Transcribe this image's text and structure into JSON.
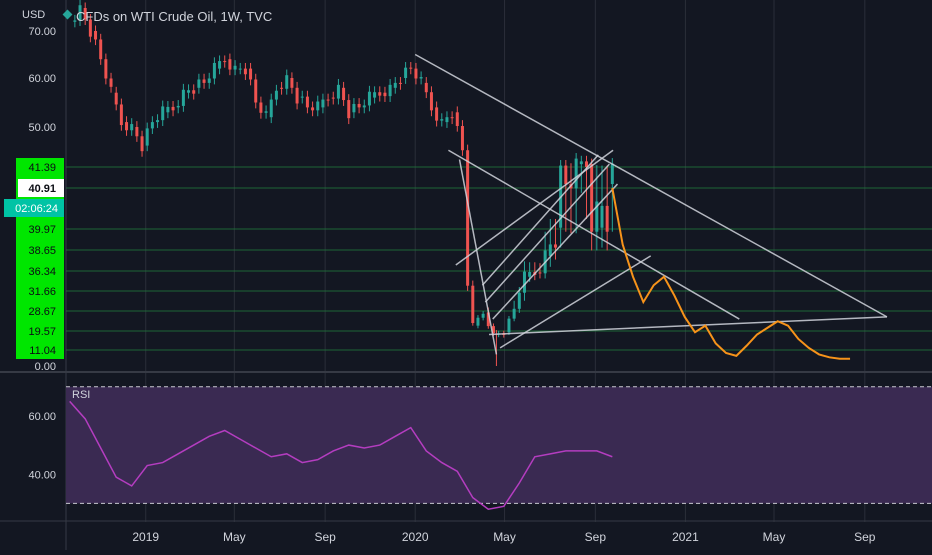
{
  "header": {
    "currency": "USD",
    "title": "CFDs on WTI Crude Oil, 1W, TVC",
    "countdown": "02:06:24"
  },
  "rsi_label": "RSI",
  "colors": {
    "background": "#131722",
    "up": "#26a69a",
    "down": "#ef5350",
    "trendline": "#d1d4dc",
    "projection": "#f7931a",
    "rsi_line": "#b43dc0",
    "rsi_band": "#3a2a52",
    "axis_text": "#d1d4dc",
    "price_tag": "#00e600",
    "last_price_tag": "#00c3a5"
  },
  "chart_data": [
    {
      "type": "candlestick",
      "ylim": [
        0,
        72
      ],
      "yticks": [
        0,
        50,
        60,
        70
      ],
      "ytick_labels": [
        "0.00",
        "50.00",
        "60.00",
        "70.00"
      ],
      "xlim": [
        "2018-09-15",
        "2021-12-01"
      ],
      "xticks": [
        "2019-01-01",
        "2019-05-01",
        "2019-09-01",
        "2020-01-01",
        "2020-05-01",
        "2020-09-01",
        "2021-01-01",
        "2021-05-01",
        "2021-09-01"
      ],
      "xtick_labels": [
        "2019",
        "May",
        "Sep",
        "2020",
        "May",
        "Sep",
        "2021",
        "May",
        "Sep"
      ],
      "price_levels": [
        {
          "label": "41.39",
          "value": 41.39
        },
        {
          "label": "40.91",
          "value": 40.91
        },
        {
          "label": "39.97",
          "value": 39.97
        },
        {
          "label": "38.65",
          "value": 38.65
        },
        {
          "label": "36.34",
          "value": 36.34
        },
        {
          "label": "31.66",
          "value": 31.66
        },
        {
          "label": "28.67",
          "value": 28.67
        },
        {
          "label": "19.57",
          "value": 19.57
        },
        {
          "label": "11.04",
          "value": 11.04
        }
      ],
      "last_price": 40.91,
      "price_path": [
        [
          "2018-09-20",
          72
        ],
        [
          "2018-10-04",
          75
        ],
        [
          "2018-10-18",
          70
        ],
        [
          "2018-11-01",
          64
        ],
        [
          "2018-11-15",
          57
        ],
        [
          "2018-11-29",
          51
        ],
        [
          "2018-12-13",
          50
        ],
        [
          "2018-12-27",
          46
        ],
        [
          "2019-01-10",
          51
        ],
        [
          "2019-01-24",
          53
        ],
        [
          "2019-02-07",
          54
        ],
        [
          "2019-02-21",
          57
        ],
        [
          "2019-03-07",
          58
        ],
        [
          "2019-03-21",
          59
        ],
        [
          "2019-04-04",
          62
        ],
        [
          "2019-04-18",
          64
        ],
        [
          "2019-05-02",
          62
        ],
        [
          "2019-05-16",
          62
        ],
        [
          "2019-05-30",
          55
        ],
        [
          "2019-06-13",
          52
        ],
        [
          "2019-06-27",
          58
        ],
        [
          "2019-07-11",
          60
        ],
        [
          "2019-07-25",
          56
        ],
        [
          "2019-08-08",
          54
        ],
        [
          "2019-08-22",
          54
        ],
        [
          "2019-09-05",
          56
        ],
        [
          "2019-09-19",
          58
        ],
        [
          "2019-10-03",
          53
        ],
        [
          "2019-10-17",
          54
        ],
        [
          "2019-10-31",
          56
        ],
        [
          "2019-11-14",
          57
        ],
        [
          "2019-11-28",
          58
        ],
        [
          "2019-12-12",
          60
        ],
        [
          "2019-12-26",
          62
        ],
        [
          "2020-01-09",
          59
        ],
        [
          "2020-01-23",
          54
        ],
        [
          "2020-02-06",
          51
        ],
        [
          "2020-02-20",
          53
        ],
        [
          "2020-03-05",
          45
        ],
        [
          "2020-03-19",
          22
        ],
        [
          "2020-04-02",
          28
        ],
        [
          "2020-04-16",
          18
        ],
        [
          "2020-04-30",
          19
        ],
        [
          "2020-05-14",
          29
        ],
        [
          "2020-05-28",
          35
        ],
        [
          "2020-06-11",
          36
        ],
        [
          "2020-06-25",
          38
        ],
        [
          "2020-07-09",
          40
        ],
        [
          "2020-07-23",
          41
        ],
        [
          "2020-08-06",
          42
        ],
        [
          "2020-08-20",
          42
        ],
        [
          "2020-09-03",
          40
        ],
        [
          "2020-09-17",
          41
        ],
        [
          "2020-09-24",
          40.91
        ]
      ],
      "trendlines": [
        [
          [
            "2020-01-01",
            65
          ],
          [
            "2021-10-01",
            26
          ]
        ],
        [
          [
            "2020-02-15",
            45
          ],
          [
            "2021-03-15",
            25
          ]
        ],
        [
          [
            "2020-02-25",
            37
          ],
          [
            "2020-09-25",
            45
          ]
        ],
        [
          [
            "2020-04-10",
            18
          ],
          [
            "2021-10-01",
            26
          ]
        ],
        [
          [
            "2020-04-01",
            33
          ],
          [
            "2020-09-05",
            44
          ]
        ],
        [
          [
            "2020-04-05",
            30
          ],
          [
            "2020-09-20",
            42
          ]
        ],
        [
          [
            "2020-04-15",
            25
          ],
          [
            "2020-10-01",
            41
          ]
        ],
        [
          [
            "2020-04-25",
            12
          ],
          [
            "2020-11-15",
            38
          ]
        ],
        [
          [
            "2020-03-01",
            43
          ],
          [
            "2020-04-20",
            8
          ]
        ]
      ],
      "projection": [
        [
          "2020-09-24",
          40.91
        ],
        [
          "2020-10-08",
          39
        ],
        [
          "2020-10-22",
          35
        ],
        [
          "2020-11-05",
          30
        ],
        [
          "2020-11-19",
          33
        ],
        [
          "2020-12-03",
          35
        ],
        [
          "2020-12-17",
          31
        ],
        [
          "2020-12-31",
          26
        ],
        [
          "2021-01-14",
          19
        ],
        [
          "2021-01-28",
          22
        ],
        [
          "2021-02-11",
          14
        ],
        [
          "2021-02-25",
          9
        ],
        [
          "2021-03-11",
          7
        ],
        [
          "2021-03-25",
          13
        ],
        [
          "2021-04-08",
          18
        ],
        [
          "2021-04-22",
          21
        ],
        [
          "2021-05-06",
          24
        ],
        [
          "2021-05-20",
          22
        ],
        [
          "2021-06-03",
          16
        ],
        [
          "2021-06-17",
          12
        ],
        [
          "2021-07-01",
          8
        ],
        [
          "2021-07-15",
          6
        ],
        [
          "2021-07-29",
          5
        ],
        [
          "2021-08-12",
          5
        ]
      ]
    },
    {
      "type": "line",
      "name": "RSI",
      "ylim": [
        25,
        73
      ],
      "yticks": [
        40,
        60
      ],
      "ytick_labels": [
        "40.00",
        "60.00"
      ],
      "band": [
        30,
        70
      ],
      "x": [
        "2018-09-20",
        "2018-10-11",
        "2018-11-01",
        "2018-11-22",
        "2018-12-13",
        "2019-01-03",
        "2019-01-24",
        "2019-02-14",
        "2019-03-07",
        "2019-03-28",
        "2019-04-18",
        "2019-05-09",
        "2019-05-30",
        "2019-06-20",
        "2019-07-11",
        "2019-08-01",
        "2019-08-22",
        "2019-09-12",
        "2019-10-03",
        "2019-10-24",
        "2019-11-14",
        "2019-12-05",
        "2019-12-26",
        "2020-01-16",
        "2020-02-06",
        "2020-02-27",
        "2020-03-19",
        "2020-04-09",
        "2020-04-30",
        "2020-05-21",
        "2020-06-11",
        "2020-07-02",
        "2020-07-23",
        "2020-08-13",
        "2020-09-03",
        "2020-09-24"
      ],
      "values": [
        65,
        59,
        49,
        39,
        36,
        43,
        44,
        47,
        50,
        53,
        55,
        52,
        49,
        46,
        47,
        44,
        45,
        48,
        50,
        49,
        50,
        53,
        56,
        48,
        44,
        41,
        32,
        28,
        29,
        37,
        46,
        47,
        48,
        48,
        48,
        46
      ]
    }
  ]
}
